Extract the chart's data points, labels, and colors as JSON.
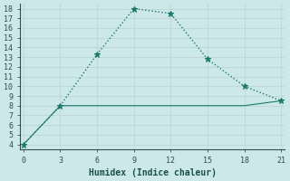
{
  "line1_x": [
    0,
    3,
    6,
    9,
    12,
    15,
    18,
    21
  ],
  "line1_y": [
    4,
    8,
    13.3,
    18,
    17.5,
    12.8,
    10,
    8.5
  ],
  "line2_x": [
    0,
    3,
    9,
    12,
    18,
    21
  ],
  "line2_y": [
    4,
    8,
    8,
    8,
    8,
    8.5
  ],
  "line_color": "#1a7a6e",
  "bg_color": "#cce8e8",
  "grid_color": "#b8d8d8",
  "xlabel": "Humidex (Indice chaleur)",
  "xlim": [
    -0.3,
    21.3
  ],
  "ylim": [
    3.5,
    18.5
  ],
  "xticks": [
    0,
    3,
    6,
    9,
    12,
    15,
    18,
    21
  ],
  "yticks": [
    4,
    5,
    6,
    7,
    8,
    9,
    10,
    11,
    12,
    13,
    14,
    15,
    16,
    17,
    18
  ]
}
